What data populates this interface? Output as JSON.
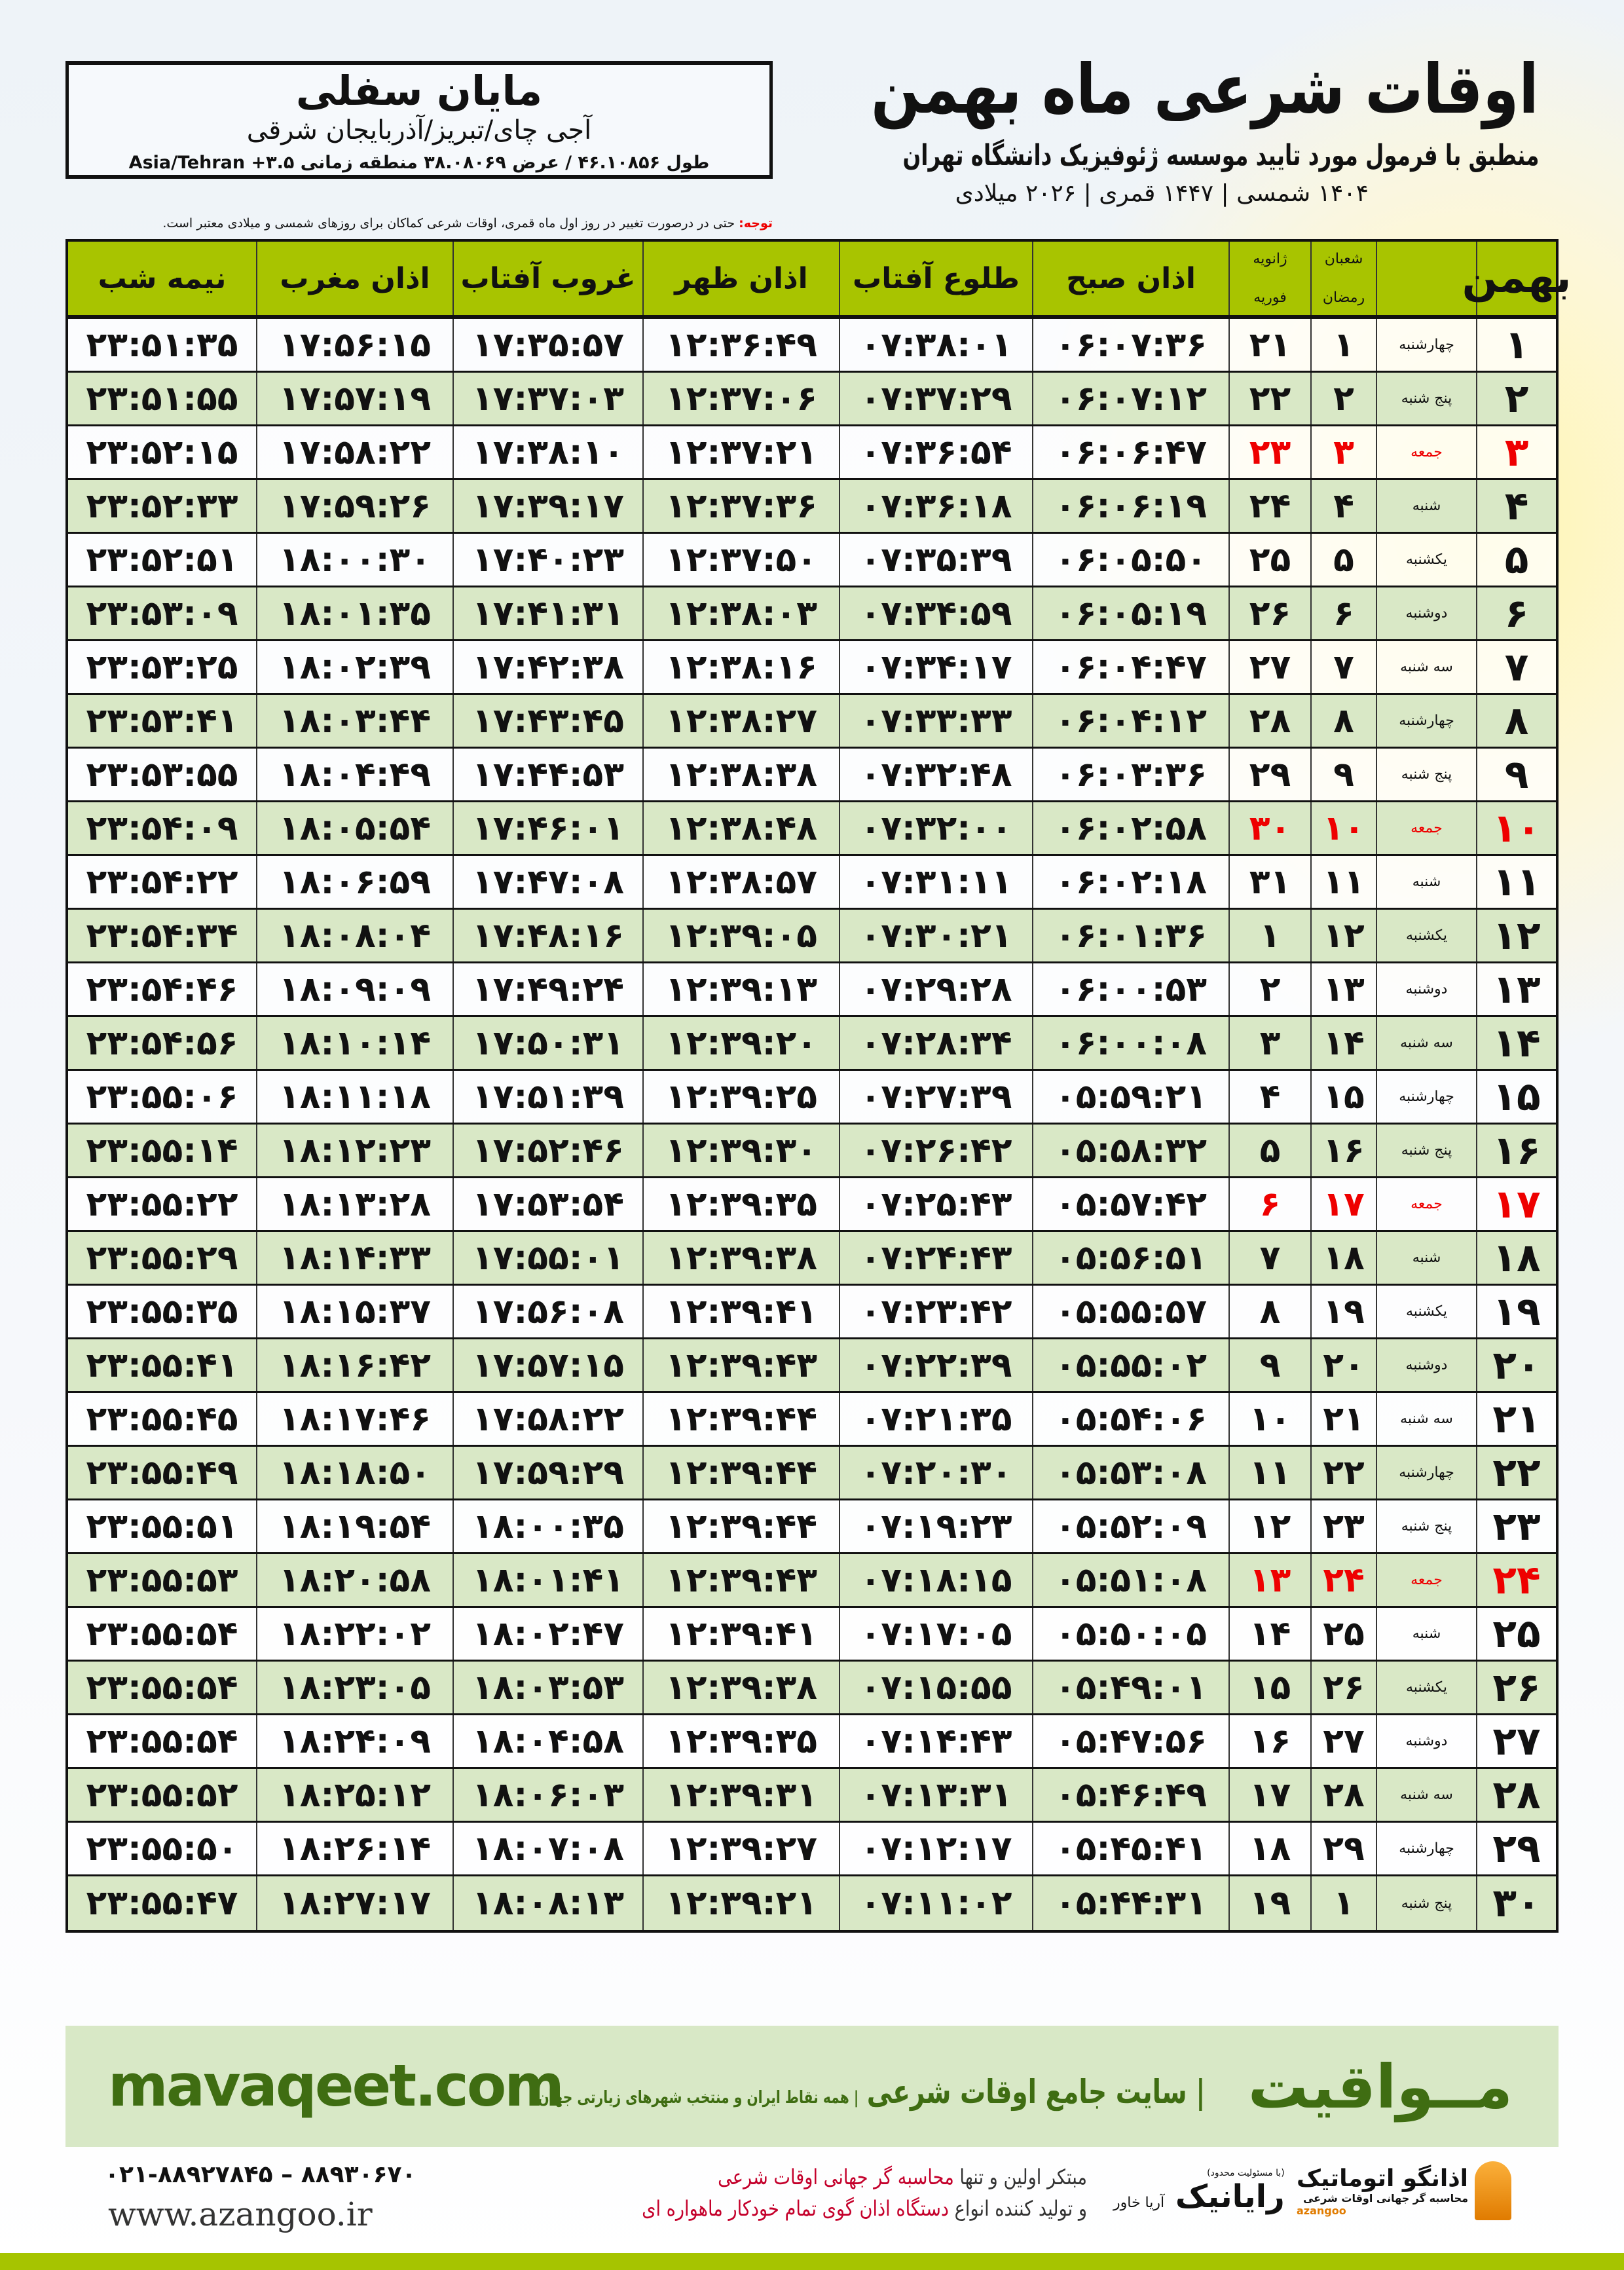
{
  "location": {
    "city": "مایان سفلی",
    "province": "آجی چای/تبریز/آذربایجان شرقی",
    "coords": "طول ۴۶.۱۰۸۵۶ / عرض ۳۸.۰۸۰۶۹ منطقه زمانی ۳.۵+ Asia/Tehran"
  },
  "header": {
    "title": "اوقات شرعی ماه بهمن",
    "subtitle": "منطبق با فرمول مورد تایید موسسه ژئوفیزیک دانشگاه تهران",
    "dates": "۱۴۰۴ شمسی | ۱۴۴۷ قمری | ۲۰۲۶ میلادی"
  },
  "note": {
    "label": "توجه:",
    "text": " حتی در درصورت تغییر در روز اول ماه قمری، اوقات شرعی کماکان برای روزهای شمسی و میلادی معتبر است."
  },
  "columns": {
    "day": "بهمن",
    "hijri_top": "شعبان",
    "hijri_bottom": "رمضان",
    "greg_top": "ژانویه",
    "greg_bottom": "فوریه",
    "fajr": "اذان صبح",
    "sunrise": "طلوع آفتاب",
    "dhuhr": "اذان ظهر",
    "sunset": "غروب آفتاب",
    "maghrib": "اذان مغرب",
    "midnight": "نیمه شب"
  },
  "colors": {
    "header": "#a8c400",
    "row_alt": "#d9e8c6",
    "friday": "#e00000",
    "brand": "#3f6d12"
  },
  "rows": [
    [
      "۱",
      "چهارشنبه",
      "۱",
      "۲۱",
      "۰۶:۰۷:۳۶",
      "۰۷:۳۸:۰۱",
      "۱۲:۳۶:۴۹",
      "۱۷:۳۵:۵۷",
      "۱۷:۵۶:۱۵",
      "۲۳:۵۱:۳۵"
    ],
    [
      "۲",
      "پنج شنبه",
      "۲",
      "۲۲",
      "۰۶:۰۷:۱۲",
      "۰۷:۳۷:۲۹",
      "۱۲:۳۷:۰۶",
      "۱۷:۳۷:۰۳",
      "۱۷:۵۷:۱۹",
      "۲۳:۵۱:۵۵"
    ],
    [
      "۳",
      "جمعه",
      "۳",
      "۲۳",
      "۰۶:۰۶:۴۷",
      "۰۷:۳۶:۵۴",
      "۱۲:۳۷:۲۱",
      "۱۷:۳۸:۱۰",
      "۱۷:۵۸:۲۲",
      "۲۳:۵۲:۱۵"
    ],
    [
      "۴",
      "شنبه",
      "۴",
      "۲۴",
      "۰۶:۰۶:۱۹",
      "۰۷:۳۶:۱۸",
      "۱۲:۳۷:۳۶",
      "۱۷:۳۹:۱۷",
      "۱۷:۵۹:۲۶",
      "۲۳:۵۲:۳۳"
    ],
    [
      "۵",
      "یکشنبه",
      "۵",
      "۲۵",
      "۰۶:۰۵:۵۰",
      "۰۷:۳۵:۳۹",
      "۱۲:۳۷:۵۰",
      "۱۷:۴۰:۲۳",
      "۱۸:۰۰:۳۰",
      "۲۳:۵۲:۵۱"
    ],
    [
      "۶",
      "دوشنبه",
      "۶",
      "۲۶",
      "۰۶:۰۵:۱۹",
      "۰۷:۳۴:۵۹",
      "۱۲:۳۸:۰۳",
      "۱۷:۴۱:۳۱",
      "۱۸:۰۱:۳۵",
      "۲۳:۵۳:۰۹"
    ],
    [
      "۷",
      "سه شنبه",
      "۷",
      "۲۷",
      "۰۶:۰۴:۴۷",
      "۰۷:۳۴:۱۷",
      "۱۲:۳۸:۱۶",
      "۱۷:۴۲:۳۸",
      "۱۸:۰۲:۳۹",
      "۲۳:۵۳:۲۵"
    ],
    [
      "۸",
      "چهارشنبه",
      "۸",
      "۲۸",
      "۰۶:۰۴:۱۲",
      "۰۷:۳۳:۳۳",
      "۱۲:۳۸:۲۷",
      "۱۷:۴۳:۴۵",
      "۱۸:۰۳:۴۴",
      "۲۳:۵۳:۴۱"
    ],
    [
      "۹",
      "پنج شنبه",
      "۹",
      "۲۹",
      "۰۶:۰۳:۳۶",
      "۰۷:۳۲:۴۸",
      "۱۲:۳۸:۳۸",
      "۱۷:۴۴:۵۳",
      "۱۸:۰۴:۴۹",
      "۲۳:۵۳:۵۵"
    ],
    [
      "۱۰",
      "جمعه",
      "۱۰",
      "۳۰",
      "۰۶:۰۲:۵۸",
      "۰۷:۳۲:۰۰",
      "۱۲:۳۸:۴۸",
      "۱۷:۴۶:۰۱",
      "۱۸:۰۵:۵۴",
      "۲۳:۵۴:۰۹"
    ],
    [
      "۱۱",
      "شنبه",
      "۱۱",
      "۳۱",
      "۰۶:۰۲:۱۸",
      "۰۷:۳۱:۱۱",
      "۱۲:۳۸:۵۷",
      "۱۷:۴۷:۰۸",
      "۱۸:۰۶:۵۹",
      "۲۳:۵۴:۲۲"
    ],
    [
      "۱۲",
      "یکشنبه",
      "۱۲",
      "۱",
      "۰۶:۰۱:۳۶",
      "۰۷:۳۰:۲۱",
      "۱۲:۳۹:۰۵",
      "۱۷:۴۸:۱۶",
      "۱۸:۰۸:۰۴",
      "۲۳:۵۴:۳۴"
    ],
    [
      "۱۳",
      "دوشنبه",
      "۱۳",
      "۲",
      "۰۶:۰۰:۵۳",
      "۰۷:۲۹:۲۸",
      "۱۲:۳۹:۱۳",
      "۱۷:۴۹:۲۴",
      "۱۸:۰۹:۰۹",
      "۲۳:۵۴:۴۶"
    ],
    [
      "۱۴",
      "سه شنبه",
      "۱۴",
      "۳",
      "۰۶:۰۰:۰۸",
      "۰۷:۲۸:۳۴",
      "۱۲:۳۹:۲۰",
      "۱۷:۵۰:۳۱",
      "۱۸:۱۰:۱۴",
      "۲۳:۵۴:۵۶"
    ],
    [
      "۱۵",
      "چهارشنبه",
      "۱۵",
      "۴",
      "۰۵:۵۹:۲۱",
      "۰۷:۲۷:۳۹",
      "۱۲:۳۹:۲۵",
      "۱۷:۵۱:۳۹",
      "۱۸:۱۱:۱۸",
      "۲۳:۵۵:۰۶"
    ],
    [
      "۱۶",
      "پنج شنبه",
      "۱۶",
      "۵",
      "۰۵:۵۸:۳۲",
      "۰۷:۲۶:۴۲",
      "۱۲:۳۹:۳۰",
      "۱۷:۵۲:۴۶",
      "۱۸:۱۲:۲۳",
      "۲۳:۵۵:۱۴"
    ],
    [
      "۱۷",
      "جمعه",
      "۱۷",
      "۶",
      "۰۵:۵۷:۴۲",
      "۰۷:۲۵:۴۳",
      "۱۲:۳۹:۳۵",
      "۱۷:۵۳:۵۴",
      "۱۸:۱۳:۲۸",
      "۲۳:۵۵:۲۲"
    ],
    [
      "۱۸",
      "شنبه",
      "۱۸",
      "۷",
      "۰۵:۵۶:۵۱",
      "۰۷:۲۴:۴۳",
      "۱۲:۳۹:۳۸",
      "۱۷:۵۵:۰۱",
      "۱۸:۱۴:۳۳",
      "۲۳:۵۵:۲۹"
    ],
    [
      "۱۹",
      "یکشنبه",
      "۱۹",
      "۸",
      "۰۵:۵۵:۵۷",
      "۰۷:۲۳:۴۲",
      "۱۲:۳۹:۴۱",
      "۱۷:۵۶:۰۸",
      "۱۸:۱۵:۳۷",
      "۲۳:۵۵:۳۵"
    ],
    [
      "۲۰",
      "دوشنبه",
      "۲۰",
      "۹",
      "۰۵:۵۵:۰۲",
      "۰۷:۲۲:۳۹",
      "۱۲:۳۹:۴۳",
      "۱۷:۵۷:۱۵",
      "۱۸:۱۶:۴۲",
      "۲۳:۵۵:۴۱"
    ],
    [
      "۲۱",
      "سه شنبه",
      "۲۱",
      "۱۰",
      "۰۵:۵۴:۰۶",
      "۰۷:۲۱:۳۵",
      "۱۲:۳۹:۴۴",
      "۱۷:۵۸:۲۲",
      "۱۸:۱۷:۴۶",
      "۲۳:۵۵:۴۵"
    ],
    [
      "۲۲",
      "چهارشنبه",
      "۲۲",
      "۱۱",
      "۰۵:۵۳:۰۸",
      "۰۷:۲۰:۳۰",
      "۱۲:۳۹:۴۴",
      "۱۷:۵۹:۲۹",
      "۱۸:۱۸:۵۰",
      "۲۳:۵۵:۴۹"
    ],
    [
      "۲۳",
      "پنج شنبه",
      "۲۳",
      "۱۲",
      "۰۵:۵۲:۰۹",
      "۰۷:۱۹:۲۳",
      "۱۲:۳۹:۴۴",
      "۱۸:۰۰:۳۵",
      "۱۸:۱۹:۵۴",
      "۲۳:۵۵:۵۱"
    ],
    [
      "۲۴",
      "جمعه",
      "۲۴",
      "۱۳",
      "۰۵:۵۱:۰۸",
      "۰۷:۱۸:۱۵",
      "۱۲:۳۹:۴۳",
      "۱۸:۰۱:۴۱",
      "۱۸:۲۰:۵۸",
      "۲۳:۵۵:۵۳"
    ],
    [
      "۲۵",
      "شنبه",
      "۲۵",
      "۱۴",
      "۰۵:۵۰:۰۵",
      "۰۷:۱۷:۰۵",
      "۱۲:۳۹:۴۱",
      "۱۸:۰۲:۴۷",
      "۱۸:۲۲:۰۲",
      "۲۳:۵۵:۵۴"
    ],
    [
      "۲۶",
      "یکشنبه",
      "۲۶",
      "۱۵",
      "۰۵:۴۹:۰۱",
      "۰۷:۱۵:۵۵",
      "۱۲:۳۹:۳۸",
      "۱۸:۰۳:۵۳",
      "۱۸:۲۳:۰۵",
      "۲۳:۵۵:۵۴"
    ],
    [
      "۲۷",
      "دوشنبه",
      "۲۷",
      "۱۶",
      "۰۵:۴۷:۵۶",
      "۰۷:۱۴:۴۳",
      "۱۲:۳۹:۳۵",
      "۱۸:۰۴:۵۸",
      "۱۸:۲۴:۰۹",
      "۲۳:۵۵:۵۴"
    ],
    [
      "۲۸",
      "سه شنبه",
      "۲۸",
      "۱۷",
      "۰۵:۴۶:۴۹",
      "۰۷:۱۳:۳۱",
      "۱۲:۳۹:۳۱",
      "۱۸:۰۶:۰۳",
      "۱۸:۲۵:۱۲",
      "۲۳:۵۵:۵۲"
    ],
    [
      "۲۹",
      "چهارشنبه",
      "۲۹",
      "۱۸",
      "۰۵:۴۵:۴۱",
      "۰۷:۱۲:۱۷",
      "۱۲:۳۹:۲۷",
      "۱۸:۰۷:۰۸",
      "۱۸:۲۶:۱۴",
      "۲۳:۵۵:۵۰"
    ],
    [
      "۳۰",
      "پنج شنبه",
      "۱",
      "۱۹",
      "۰۵:۴۴:۳۱",
      "۰۷:۱۱:۰۲",
      "۱۲:۳۹:۲۱",
      "۱۸:۰۸:۱۳",
      "۱۸:۲۷:۱۷",
      "۲۳:۵۵:۴۷"
    ]
  ],
  "friday_label": "جمعه",
  "banner": {
    "brand": "مــواقیت",
    "title": "| سایت جامع اوقات شرعی",
    "tagline": "| همه نقاط ایران و منتخب شهرهای زیارتی جهان",
    "site": "mavaqeet.com"
  },
  "footer": {
    "phones": "۰۲۱-۸۸۹۲۷۸۴۵ – ۸۸۹۳۰۶۷۰",
    "www": "www.azangoo.ir",
    "slogan1_a": "مبتکر اولین و تنها ",
    "slogan1_b": "محاسبه گر جهانی اوقات شرعی",
    "slogan2_a": "و تولید کننده انواع ",
    "slogan2_b": "دستگاه اذان گوی تمام خودکار ماهواره ای",
    "raya": "رایانیک",
    "raya_sub": "آریا خاور",
    "raya_note": "(با مسئولیت محدود)",
    "azangoo": "اذانگو اتوماتیک",
    "azangoo_sub": "محاسبه گر جهانی اوقات شرعی",
    "azangoo_latin": "azangoo"
  }
}
